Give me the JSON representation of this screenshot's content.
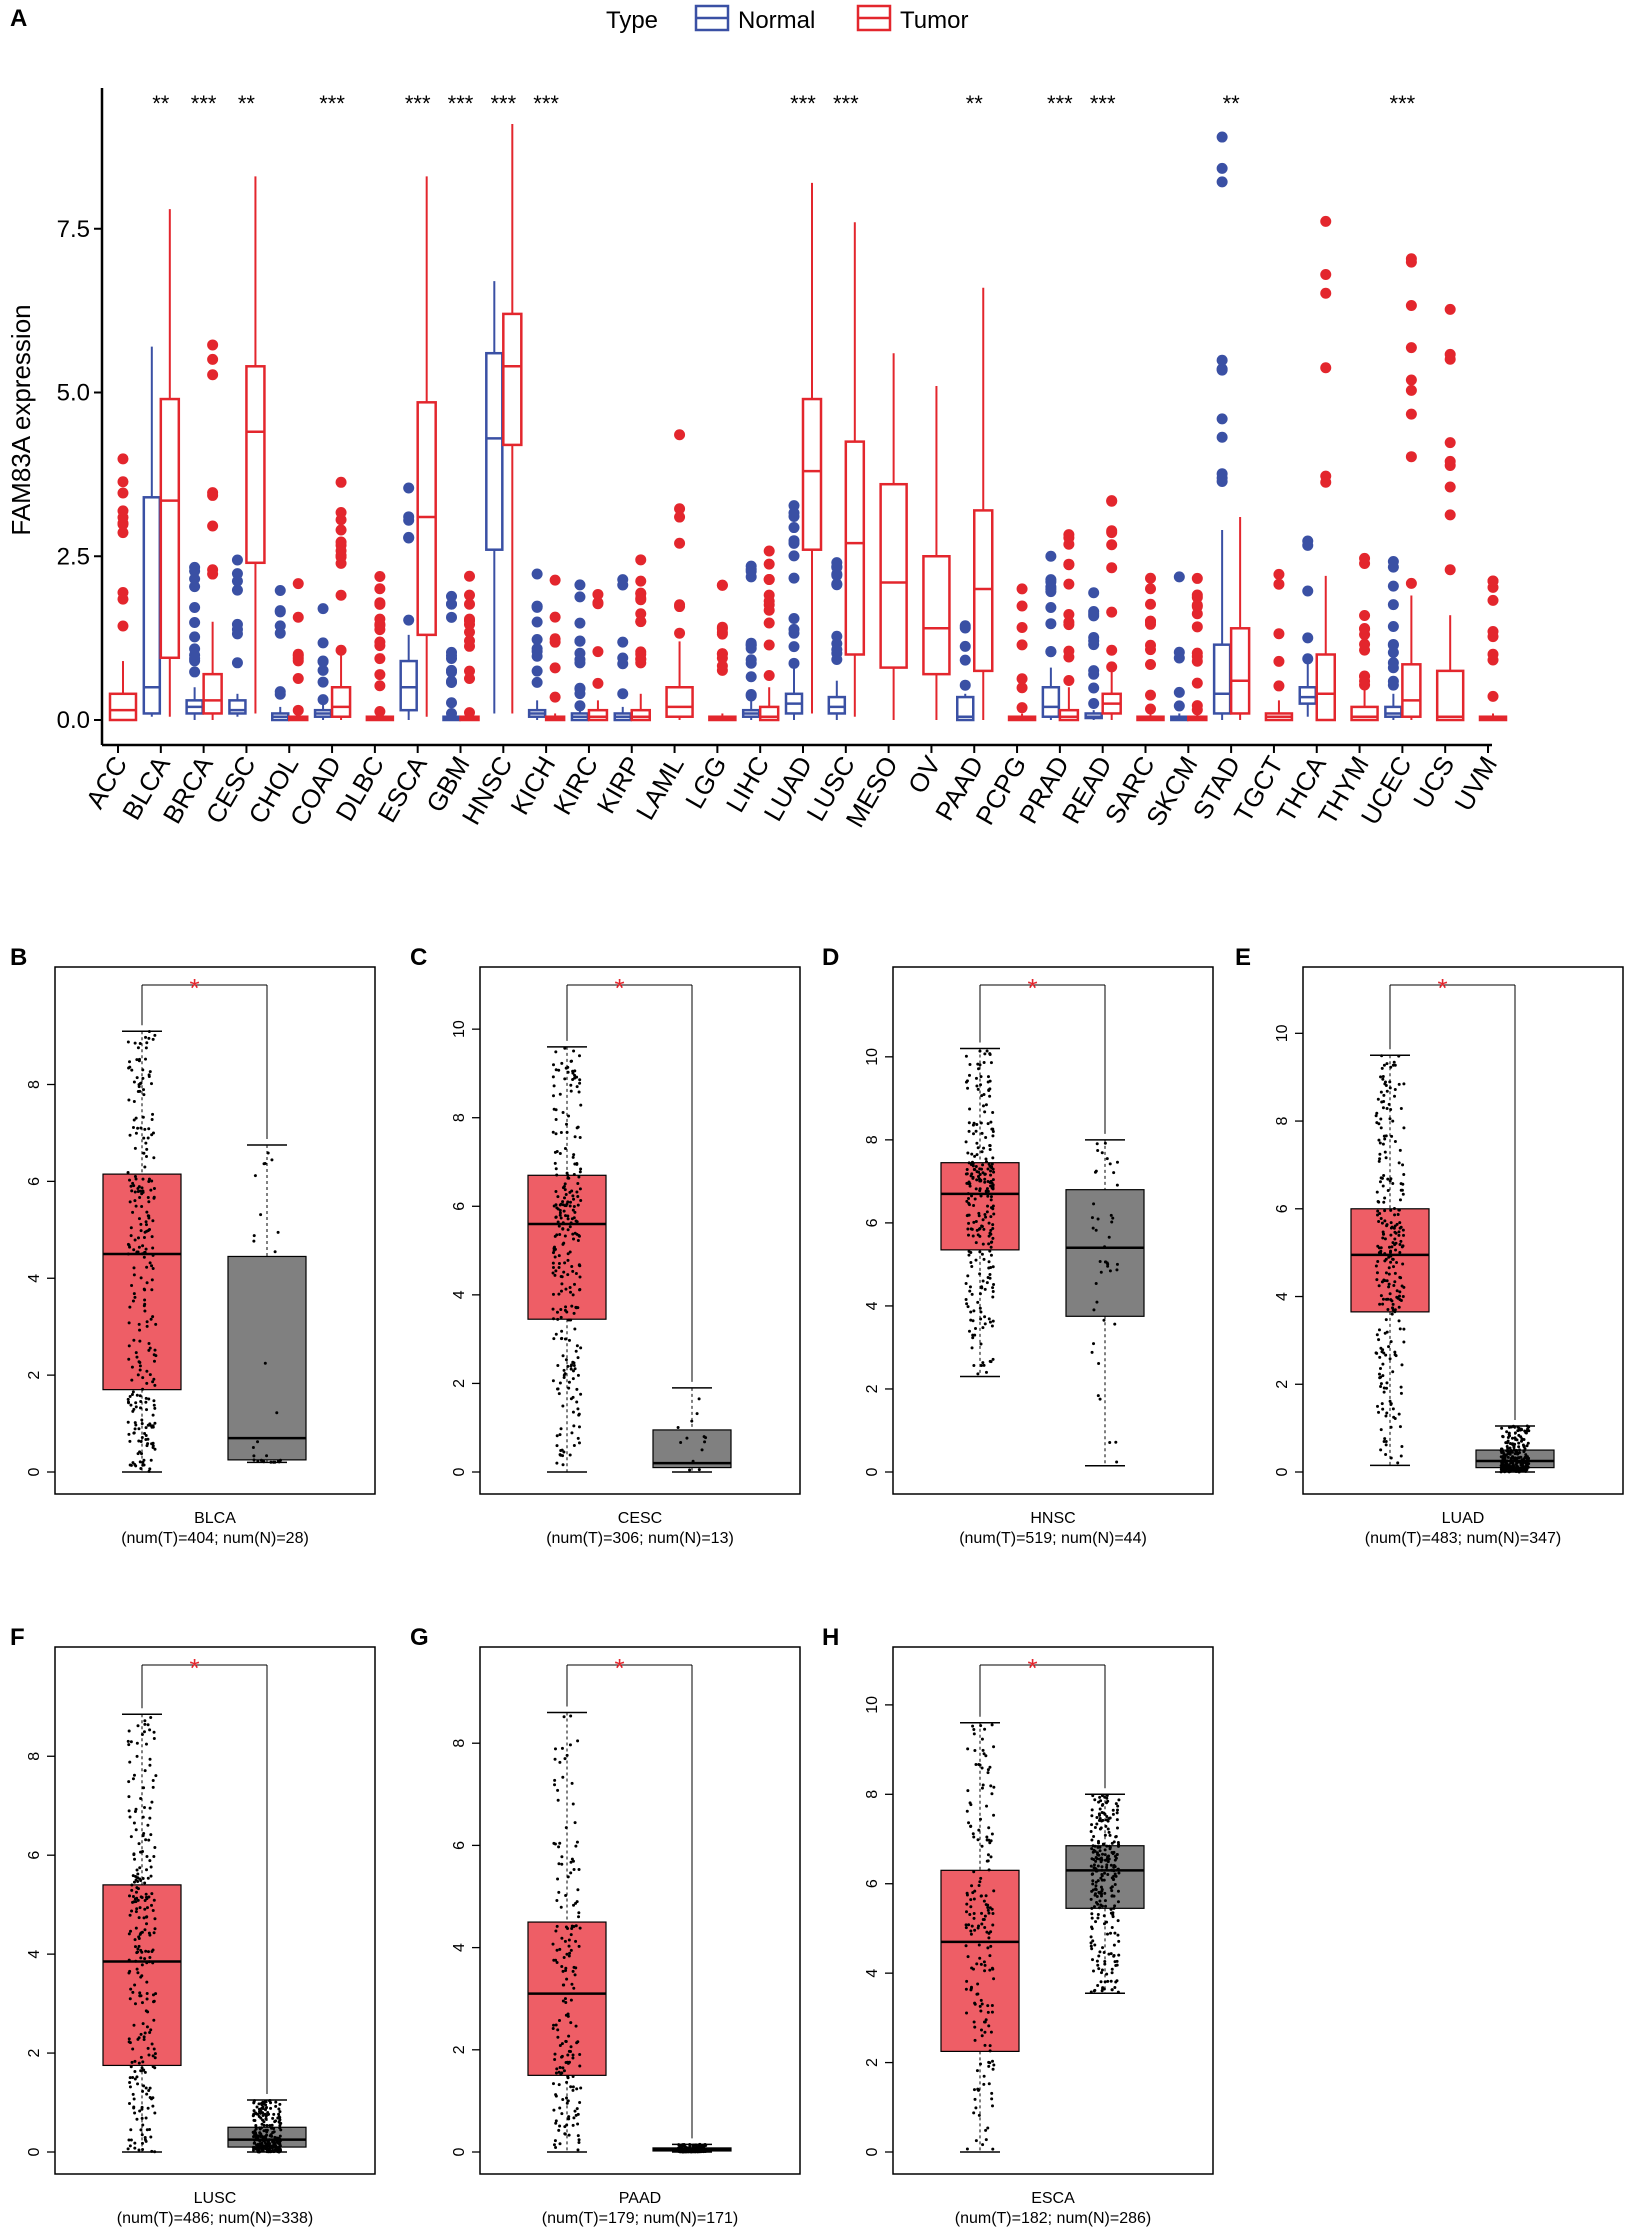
{
  "colors": {
    "normal": "#3a50a4",
    "tumor": "#e3262d",
    "tumor_fill": "#ee5e66",
    "normal_fill": "#808080",
    "sig_star": "#e3262d",
    "axis": "#000000"
  },
  "chart_data": [
    {
      "panel": "A",
      "type": "box",
      "ylabel": "FAM83A expression",
      "ylim": [
        -0.2,
        9.3
      ],
      "yticks": [
        "0.0",
        "2.5",
        "5.0",
        "7.5"
      ],
      "legend": {
        "title": "Type",
        "entries": [
          "Normal",
          "Tumor"
        ],
        "position": "top"
      },
      "categories": [
        "ACC",
        "BLCA",
        "BRCA",
        "CESC",
        "CHOL",
        "COAD",
        "DLBC",
        "ESCA",
        "GBM",
        "HNSC",
        "KICH",
        "KIRC",
        "KIRP",
        "LAML",
        "LGG",
        "LIHC",
        "LUAD",
        "LUSC",
        "MESO",
        "OV",
        "PAAD",
        "PCPG",
        "PRAD",
        "READ",
        "SARC",
        "SKCM",
        "STAD",
        "TGCT",
        "THCA",
        "THYM",
        "UCEC",
        "UCS",
        "UVM"
      ],
      "significance": [
        "",
        "**",
        "***",
        "**",
        "",
        "***",
        "",
        "***",
        "***",
        "***",
        "***",
        "",
        "",
        "",
        "",
        "",
        "***",
        "***",
        "",
        "",
        "**",
        "",
        "***",
        "***",
        "",
        "",
        "**",
        "",
        "",
        "",
        "***",
        "",
        ""
      ],
      "normal": [
        null,
        [
          0.05,
          0.1,
          0.5,
          3.4,
          5.7
        ],
        [
          0,
          0.1,
          0.2,
          0.3,
          0.5
        ],
        [
          0.05,
          0.1,
          0.15,
          0.3,
          0.4
        ],
        [
          0,
          0,
          0.05,
          0.1,
          0.2
        ],
        [
          0,
          0.05,
          0.1,
          0.15,
          0.3
        ],
        null,
        [
          0,
          0.15,
          0.5,
          0.9,
          1.3
        ],
        [
          0,
          0,
          0.03,
          0.05,
          0.08
        ],
        [
          0.1,
          2.6,
          4.3,
          5.6,
          6.7
        ],
        [
          0,
          0.05,
          0.1,
          0.15,
          0.3
        ],
        [
          0,
          0,
          0.05,
          0.1,
          0.2
        ],
        [
          0,
          0,
          0.05,
          0.1,
          0.2
        ],
        null,
        null,
        [
          0,
          0.05,
          0.1,
          0.15,
          0.3
        ],
        [
          0,
          0.1,
          0.25,
          0.4,
          0.8
        ],
        [
          0,
          0.1,
          0.2,
          0.35,
          0.6
        ],
        null,
        null,
        [
          0,
          0,
          0.05,
          0.35,
          0.4
        ],
        null,
        [
          0,
          0.05,
          0.2,
          0.5,
          0.8
        ],
        [
          0,
          0.03,
          0.05,
          0.1,
          0.15
        ],
        null,
        [
          0,
          0,
          0.02,
          0.05,
          0.1
        ],
        [
          0,
          0.1,
          0.4,
          1.15,
          2.9
        ],
        null,
        [
          0.05,
          0.25,
          0.35,
          0.5,
          0.9
        ],
        null,
        [
          0,
          0.05,
          0.1,
          0.2,
          0.4
        ],
        null,
        null
      ],
      "tumor": [
        [
          0,
          0,
          0.15,
          0.4,
          0.9
        ],
        [
          0.05,
          0.95,
          3.35,
          4.9,
          7.8
        ],
        [
          0,
          0.1,
          0.3,
          0.7,
          1.5
        ],
        [
          0.1,
          2.4,
          4.4,
          5.4,
          8.3
        ],
        [
          0,
          0,
          0.02,
          0.05,
          0.1
        ],
        [
          0,
          0.05,
          0.2,
          0.5,
          1.0
        ],
        [
          0,
          0,
          0.02,
          0.05,
          0.1
        ],
        [
          0.05,
          1.3,
          3.1,
          4.85,
          8.3
        ],
        [
          0,
          0,
          0.02,
          0.05,
          0.1
        ],
        [
          0.1,
          4.2,
          5.4,
          6.2,
          9.1
        ],
        [
          0,
          0,
          0.02,
          0.05,
          0.1
        ],
        [
          0,
          0,
          0.05,
          0.15,
          0.3
        ],
        [
          0,
          0,
          0.05,
          0.15,
          0.4
        ],
        [
          0,
          0.05,
          0.2,
          0.5,
          1.2
        ],
        [
          0,
          0,
          0.02,
          0.05,
          0.1
        ],
        [
          0,
          0,
          0.05,
          0.2,
          0.5
        ],
        [
          0.1,
          2.6,
          3.8,
          4.9,
          8.2
        ],
        [
          0.05,
          1.0,
          2.7,
          4.25,
          7.6
        ],
        [
          0,
          0.8,
          2.1,
          3.6,
          5.6
        ],
        [
          0,
          0.7,
          1.4,
          2.5,
          5.1
        ],
        [
          0,
          0.75,
          2.0,
          3.2,
          6.6
        ],
        [
          0,
          0,
          0.02,
          0.05,
          0.1
        ],
        [
          0,
          0,
          0.05,
          0.15,
          0.5
        ],
        [
          0,
          0.1,
          0.25,
          0.4,
          0.8
        ],
        [
          0,
          0,
          0.02,
          0.05,
          0.1
        ],
        [
          0,
          0,
          0.02,
          0.05,
          0.1
        ],
        [
          0,
          0.1,
          0.6,
          1.4,
          3.1
        ],
        [
          0,
          0,
          0.05,
          0.1,
          0.3
        ],
        [
          0,
          0,
          0.4,
          1.0,
          2.2
        ],
        [
          0,
          0,
          0.05,
          0.2,
          0.5
        ],
        [
          0,
          0.05,
          0.3,
          0.85,
          1.9
        ],
        [
          0,
          0,
          0.05,
          0.75,
          1.6
        ],
        [
          0,
          0,
          0.02,
          0.05,
          0.1
        ]
      ]
    },
    {
      "panel": "B",
      "type": "box",
      "xlabel": "BLCA",
      "count_label": "(num(T)=404; num(N)=28)",
      "ymax_data": 9.6,
      "yticks": [
        "0",
        "2",
        "4",
        "6",
        "8"
      ],
      "tumor": [
        0,
        1.7,
        4.5,
        6.15,
        9.1
      ],
      "normal": [
        0.2,
        0.25,
        0.7,
        4.45,
        6.75
      ],
      "n_tumor": 404,
      "n_normal": 28
    },
    {
      "panel": "C",
      "type": "box",
      "xlabel": "CESC",
      "count_label": "(num(T)=306; num(N)=13)",
      "ymax_data": 10.5,
      "yticks": [
        "0",
        "2",
        "4",
        "6",
        "8",
        "10"
      ],
      "tumor": [
        0,
        3.45,
        5.6,
        6.7,
        9.6
      ],
      "normal": [
        0,
        0.1,
        0.2,
        0.95,
        1.9
      ],
      "n_tumor": 306,
      "n_normal": 13
    },
    {
      "panel": "D",
      "type": "box",
      "xlabel": "HNSC",
      "count_label": "(num(T)=519; num(N)=44)",
      "ymax_data": 11.2,
      "yticks": [
        "0",
        "2",
        "4",
        "6",
        "8",
        "10"
      ],
      "tumor": [
        2.3,
        5.35,
        6.7,
        7.45,
        10.2
      ],
      "normal": [
        0.15,
        3.75,
        5.4,
        6.8,
        8.0
      ],
      "n_tumor": 519,
      "n_normal": 44
    },
    {
      "panel": "E",
      "type": "box",
      "xlabel": "LUAD",
      "count_label": "(num(T)=483; num(N)=347)",
      "ymax_data": 10.6,
      "yticks": [
        "0",
        "2",
        "4",
        "6",
        "8",
        "10"
      ],
      "tumor": [
        0.15,
        3.65,
        4.95,
        6.0,
        9.5
      ],
      "normal": [
        0,
        0.1,
        0.25,
        0.5,
        1.05
      ],
      "n_tumor": 483,
      "n_normal": 347
    },
    {
      "panel": "F",
      "type": "box",
      "xlabel": "LUSC",
      "count_label": "(num(T)=486; num(N)=338)",
      "ymax_data": 9.4,
      "yticks": [
        "0",
        "2",
        "4",
        "6",
        "8"
      ],
      "tumor": [
        0,
        1.75,
        3.85,
        5.4,
        8.85
      ],
      "normal": [
        0,
        0.1,
        0.25,
        0.5,
        1.05
      ],
      "n_tumor": 486,
      "n_normal": 338
    },
    {
      "panel": "G",
      "type": "box",
      "xlabel": "PAAD",
      "count_label": "(num(T)=179; num(N)=171)",
      "ymax_data": 9.1,
      "yticks": [
        "0",
        "2",
        "4",
        "6",
        "8"
      ],
      "tumor": [
        0,
        1.5,
        3.1,
        4.5,
        8.6
      ],
      "normal": [
        0,
        0.02,
        0.05,
        0.08,
        0.15
      ],
      "n_tumor": 179,
      "n_normal": 171
    },
    {
      "panel": "H",
      "type": "box",
      "xlabel": "ESCA",
      "count_label": "(num(T)=182; num(N)=286)",
      "ymax_data": 10.4,
      "yticks": [
        "0",
        "2",
        "4",
        "6",
        "8",
        "10"
      ],
      "tumor": [
        0,
        2.25,
        4.7,
        6.3,
        9.6
      ],
      "normal": [
        3.55,
        5.45,
        6.3,
        6.85,
        8.0
      ],
      "n_tumor": 182,
      "n_normal": 286
    }
  ],
  "sig_mark": "*"
}
